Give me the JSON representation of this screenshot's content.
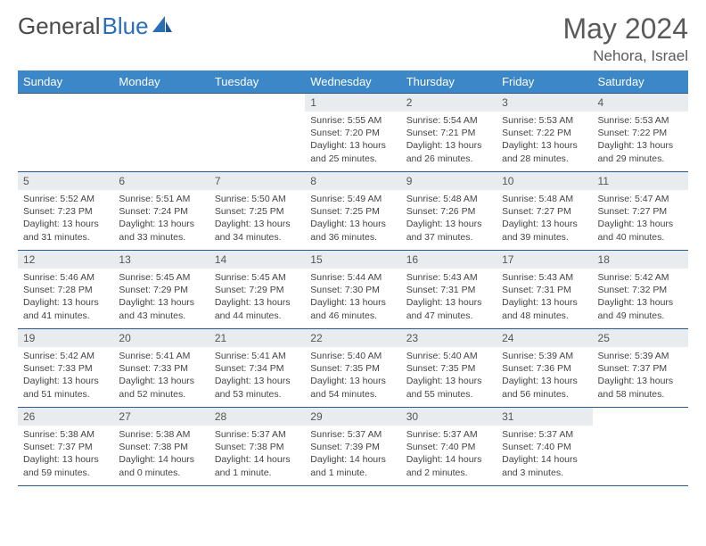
{
  "brand": {
    "part1": "General",
    "part2": "Blue"
  },
  "title": "May 2024",
  "location": "Nehora, Israel",
  "colors": {
    "header_bg": "#3b87c8",
    "header_text": "#ffffff",
    "border": "#2a5a8a",
    "daynum_bg": "#e9ecef",
    "text": "#444444",
    "page_bg": "#ffffff",
    "brand_blue": "#2a6fb5",
    "brand_dark": "#4a4a4a"
  },
  "weekdays": [
    "Sunday",
    "Monday",
    "Tuesday",
    "Wednesday",
    "Thursday",
    "Friday",
    "Saturday"
  ],
  "weeks": [
    [
      {
        "n": "",
        "sr": "",
        "ss": "",
        "dl": ""
      },
      {
        "n": "",
        "sr": "",
        "ss": "",
        "dl": ""
      },
      {
        "n": "",
        "sr": "",
        "ss": "",
        "dl": ""
      },
      {
        "n": "1",
        "sr": "Sunrise: 5:55 AM",
        "ss": "Sunset: 7:20 PM",
        "dl": "Daylight: 13 hours and 25 minutes."
      },
      {
        "n": "2",
        "sr": "Sunrise: 5:54 AM",
        "ss": "Sunset: 7:21 PM",
        "dl": "Daylight: 13 hours and 26 minutes."
      },
      {
        "n": "3",
        "sr": "Sunrise: 5:53 AM",
        "ss": "Sunset: 7:22 PM",
        "dl": "Daylight: 13 hours and 28 minutes."
      },
      {
        "n": "4",
        "sr": "Sunrise: 5:53 AM",
        "ss": "Sunset: 7:22 PM",
        "dl": "Daylight: 13 hours and 29 minutes."
      }
    ],
    [
      {
        "n": "5",
        "sr": "Sunrise: 5:52 AM",
        "ss": "Sunset: 7:23 PM",
        "dl": "Daylight: 13 hours and 31 minutes."
      },
      {
        "n": "6",
        "sr": "Sunrise: 5:51 AM",
        "ss": "Sunset: 7:24 PM",
        "dl": "Daylight: 13 hours and 33 minutes."
      },
      {
        "n": "7",
        "sr": "Sunrise: 5:50 AM",
        "ss": "Sunset: 7:25 PM",
        "dl": "Daylight: 13 hours and 34 minutes."
      },
      {
        "n": "8",
        "sr": "Sunrise: 5:49 AM",
        "ss": "Sunset: 7:25 PM",
        "dl": "Daylight: 13 hours and 36 minutes."
      },
      {
        "n": "9",
        "sr": "Sunrise: 5:48 AM",
        "ss": "Sunset: 7:26 PM",
        "dl": "Daylight: 13 hours and 37 minutes."
      },
      {
        "n": "10",
        "sr": "Sunrise: 5:48 AM",
        "ss": "Sunset: 7:27 PM",
        "dl": "Daylight: 13 hours and 39 minutes."
      },
      {
        "n": "11",
        "sr": "Sunrise: 5:47 AM",
        "ss": "Sunset: 7:27 PM",
        "dl": "Daylight: 13 hours and 40 minutes."
      }
    ],
    [
      {
        "n": "12",
        "sr": "Sunrise: 5:46 AM",
        "ss": "Sunset: 7:28 PM",
        "dl": "Daylight: 13 hours and 41 minutes."
      },
      {
        "n": "13",
        "sr": "Sunrise: 5:45 AM",
        "ss": "Sunset: 7:29 PM",
        "dl": "Daylight: 13 hours and 43 minutes."
      },
      {
        "n": "14",
        "sr": "Sunrise: 5:45 AM",
        "ss": "Sunset: 7:29 PM",
        "dl": "Daylight: 13 hours and 44 minutes."
      },
      {
        "n": "15",
        "sr": "Sunrise: 5:44 AM",
        "ss": "Sunset: 7:30 PM",
        "dl": "Daylight: 13 hours and 46 minutes."
      },
      {
        "n": "16",
        "sr": "Sunrise: 5:43 AM",
        "ss": "Sunset: 7:31 PM",
        "dl": "Daylight: 13 hours and 47 minutes."
      },
      {
        "n": "17",
        "sr": "Sunrise: 5:43 AM",
        "ss": "Sunset: 7:31 PM",
        "dl": "Daylight: 13 hours and 48 minutes."
      },
      {
        "n": "18",
        "sr": "Sunrise: 5:42 AM",
        "ss": "Sunset: 7:32 PM",
        "dl": "Daylight: 13 hours and 49 minutes."
      }
    ],
    [
      {
        "n": "19",
        "sr": "Sunrise: 5:42 AM",
        "ss": "Sunset: 7:33 PM",
        "dl": "Daylight: 13 hours and 51 minutes."
      },
      {
        "n": "20",
        "sr": "Sunrise: 5:41 AM",
        "ss": "Sunset: 7:33 PM",
        "dl": "Daylight: 13 hours and 52 minutes."
      },
      {
        "n": "21",
        "sr": "Sunrise: 5:41 AM",
        "ss": "Sunset: 7:34 PM",
        "dl": "Daylight: 13 hours and 53 minutes."
      },
      {
        "n": "22",
        "sr": "Sunrise: 5:40 AM",
        "ss": "Sunset: 7:35 PM",
        "dl": "Daylight: 13 hours and 54 minutes."
      },
      {
        "n": "23",
        "sr": "Sunrise: 5:40 AM",
        "ss": "Sunset: 7:35 PM",
        "dl": "Daylight: 13 hours and 55 minutes."
      },
      {
        "n": "24",
        "sr": "Sunrise: 5:39 AM",
        "ss": "Sunset: 7:36 PM",
        "dl": "Daylight: 13 hours and 56 minutes."
      },
      {
        "n": "25",
        "sr": "Sunrise: 5:39 AM",
        "ss": "Sunset: 7:37 PM",
        "dl": "Daylight: 13 hours and 58 minutes."
      }
    ],
    [
      {
        "n": "26",
        "sr": "Sunrise: 5:38 AM",
        "ss": "Sunset: 7:37 PM",
        "dl": "Daylight: 13 hours and 59 minutes."
      },
      {
        "n": "27",
        "sr": "Sunrise: 5:38 AM",
        "ss": "Sunset: 7:38 PM",
        "dl": "Daylight: 14 hours and 0 minutes."
      },
      {
        "n": "28",
        "sr": "Sunrise: 5:37 AM",
        "ss": "Sunset: 7:38 PM",
        "dl": "Daylight: 14 hours and 1 minute."
      },
      {
        "n": "29",
        "sr": "Sunrise: 5:37 AM",
        "ss": "Sunset: 7:39 PM",
        "dl": "Daylight: 14 hours and 1 minute."
      },
      {
        "n": "30",
        "sr": "Sunrise: 5:37 AM",
        "ss": "Sunset: 7:40 PM",
        "dl": "Daylight: 14 hours and 2 minutes."
      },
      {
        "n": "31",
        "sr": "Sunrise: 5:37 AM",
        "ss": "Sunset: 7:40 PM",
        "dl": "Daylight: 14 hours and 3 minutes."
      },
      {
        "n": "",
        "sr": "",
        "ss": "",
        "dl": ""
      }
    ]
  ]
}
